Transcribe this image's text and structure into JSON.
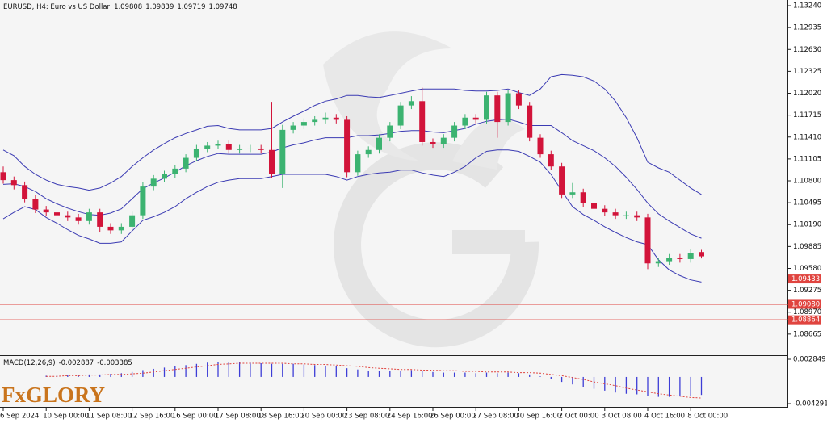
{
  "chart_data": [
    {
      "type": "candlestick",
      "title": "EURUSD, H4:  Euro vs US Dollar",
      "categories": [
        "6 Sep 2024",
        null,
        null,
        null,
        "10 Sep 00:00",
        null,
        null,
        null,
        "11 Sep 08:00",
        null,
        null,
        null,
        "12 Sep 16:00",
        null,
        null,
        null,
        "16 Sep 00:00",
        null,
        null,
        null,
        "17 Sep 08:00",
        null,
        null,
        null,
        "18 Sep 16:00",
        null,
        null,
        null,
        "20 Sep 00:00",
        null,
        null,
        null,
        "23 Sep 08:00",
        null,
        null,
        null,
        "24 Sep 16:00",
        null,
        null,
        null,
        "26 Sep 00:00",
        null,
        null,
        null,
        "27 Sep 08:00",
        null,
        null,
        null,
        "30 Sep 16:00",
        null,
        null,
        null,
        "2 Oct 00:00",
        null,
        null,
        null,
        "3 Oct 08:00",
        null,
        null,
        null,
        "4 Oct 16:00",
        null,
        null,
        null,
        "8 Oct 00:00",
        null
      ],
      "open": [
        1.1092,
        1.1081,
        1.1074,
        1.1055,
        1.104,
        1.1036,
        1.1032,
        1.1029,
        1.1024,
        1.1036,
        1.1016,
        1.1011,
        1.1016,
        1.1032,
        1.1072,
        1.1083,
        1.1089,
        1.1097,
        1.1112,
        1.1125,
        1.1129,
        1.1131,
        1.1123,
        1.1125,
        1.1125,
        1.1123,
        1.1089,
        1.1151,
        1.1157,
        1.1162,
        1.1165,
        1.1168,
        1.1165,
        1.1092,
        1.1117,
        1.1123,
        1.114,
        1.1157,
        1.1185,
        1.1191,
        1.1134,
        1.1131,
        1.114,
        1.1157,
        1.1168,
        1.1165,
        1.1199,
        1.1162,
        1.1202,
        1.1185,
        1.114,
        1.1117,
        1.11,
        1.1061,
        1.1064,
        1.1049,
        1.1041,
        1.1036,
        1.1032,
        1.1032,
        1.1029,
        1.0965,
        1.0968,
        1.0973,
        1.0971,
        1.09808
      ],
      "high": [
        1.11,
        1.1086,
        1.1079,
        1.106,
        1.1045,
        1.1041,
        1.1037,
        1.1034,
        1.1041,
        1.1041,
        1.1021,
        1.1021,
        1.1037,
        1.1078,
        1.1088,
        1.1094,
        1.1102,
        1.1117,
        1.113,
        1.1134,
        1.1136,
        1.1136,
        1.113,
        1.113,
        1.113,
        1.119,
        1.1158,
        1.1162,
        1.1167,
        1.117,
        1.1175,
        1.1173,
        1.117,
        1.1122,
        1.1128,
        1.1145,
        1.1162,
        1.119,
        1.1198,
        1.121,
        1.1139,
        1.1145,
        1.1162,
        1.1173,
        1.1173,
        1.1204,
        1.1204,
        1.1207,
        1.1207,
        1.119,
        1.1145,
        1.1122,
        1.1105,
        1.1077,
        1.1069,
        1.1054,
        1.1046,
        1.1041,
        1.1037,
        1.1037,
        1.1034,
        1.0973,
        1.0978,
        1.0978,
        1.0985,
        1.09839
      ],
      "low": [
        1.1076,
        1.1068,
        1.105,
        1.1035,
        1.1031,
        1.1027,
        1.1024,
        1.1019,
        1.1019,
        1.1008,
        1.1006,
        1.1006,
        1.1011,
        1.1027,
        1.1067,
        1.1078,
        1.1084,
        1.1092,
        1.1107,
        1.112,
        1.1124,
        1.1118,
        1.1118,
        1.112,
        1.1118,
        1.1084,
        1.107,
        1.1146,
        1.1152,
        1.1157,
        1.116,
        1.116,
        1.1085,
        1.1087,
        1.1112,
        1.1118,
        1.1135,
        1.1152,
        1.118,
        1.1129,
        1.1126,
        1.1126,
        1.1135,
        1.1152,
        1.116,
        1.116,
        1.114,
        1.1157,
        1.118,
        1.1135,
        1.1112,
        1.1095,
        1.1056,
        1.1056,
        1.1044,
        1.1036,
        1.1031,
        1.1027,
        1.1027,
        1.1024,
        1.0957,
        1.096,
        1.0963,
        1.0966,
        1.0966,
        1.09719
      ],
      "close": [
        1.1081,
        1.1074,
        1.1055,
        1.104,
        1.1036,
        1.1032,
        1.1029,
        1.1024,
        1.1036,
        1.1016,
        1.1011,
        1.1016,
        1.1032,
        1.1072,
        1.1083,
        1.1089,
        1.1097,
        1.1112,
        1.1125,
        1.1129,
        1.1131,
        1.1123,
        1.1125,
        1.1125,
        1.1123,
        1.1089,
        1.1151,
        1.1157,
        1.1162,
        1.1165,
        1.1168,
        1.1165,
        1.1092,
        1.1117,
        1.1123,
        1.114,
        1.1157,
        1.1185,
        1.1191,
        1.1134,
        1.1131,
        1.114,
        1.1157,
        1.1168,
        1.1165,
        1.1199,
        1.1162,
        1.1202,
        1.1185,
        1.114,
        1.1117,
        1.11,
        1.1061,
        1.1064,
        1.1049,
        1.1041,
        1.1036,
        1.1032,
        1.1032,
        1.1029,
        1.0965,
        1.0968,
        1.0973,
        1.0971,
        1.0979,
        1.09748
      ],
      "up_color": "#3cb371",
      "down_color": "#d2143a",
      "overlays": [
        {
          "color": "#3b3bb3",
          "values": [
            1.1123,
            1.1115,
            1.11,
            1.1089,
            1.1081,
            1.1075,
            1.1072,
            1.107,
            1.1067,
            1.107,
            1.1077,
            1.1086,
            1.11,
            1.1112,
            1.1123,
            1.1132,
            1.114,
            1.1146,
            1.1151,
            1.1156,
            1.1157,
            1.1153,
            1.1151,
            1.1151,
            1.1151,
            1.1153,
            1.1162,
            1.117,
            1.1177,
            1.1185,
            1.1191,
            1.1194,
            1.1199,
            1.1199,
            1.1197,
            1.1196,
            1.1199,
            1.1202,
            1.1205,
            1.1208,
            1.1208,
            1.1208,
            1.1208,
            1.1206,
            1.1205,
            1.1205,
            1.1206,
            1.1208,
            1.1203,
            1.1199,
            1.1208,
            1.1225,
            1.1228,
            1.1227,
            1.1225,
            1.1219,
            1.1208,
            1.1191,
            1.1168,
            1.114,
            1.1106,
            1.1098,
            1.1092,
            1.1081,
            1.107,
            1.1061
          ]
        },
        {
          "color": "#3b3bb3",
          "values": [
            1.1075,
            1.1076,
            1.1072,
            1.1065,
            1.1055,
            1.1048,
            1.1042,
            1.1037,
            1.1033,
            1.1032,
            1.1035,
            1.1041,
            1.1055,
            1.1069,
            1.1077,
            1.1084,
            1.1092,
            1.1101,
            1.1108,
            1.1114,
            1.1118,
            1.1117,
            1.1117,
            1.1117,
            1.1117,
            1.112,
            1.1126,
            1.113,
            1.1133,
            1.1137,
            1.114,
            1.114,
            1.114,
            1.1143,
            1.1143,
            1.1144,
            1.1146,
            1.1149,
            1.115,
            1.115,
            1.1148,
            1.1147,
            1.115,
            1.1153,
            1.1159,
            1.1163,
            1.1165,
            1.1166,
            1.1162,
            1.1157,
            1.1157,
            1.1157,
            1.1147,
            1.1136,
            1.1129,
            1.1122,
            1.1112,
            1.11,
            1.1085,
            1.1068,
            1.1049,
            1.1034,
            1.1024,
            1.1015,
            1.1006,
            1.1
          ]
        },
        {
          "color": "#3b3bb3",
          "values": [
            1.1027,
            1.1036,
            1.1044,
            1.104,
            1.1029,
            1.1021,
            1.1012,
            1.1004,
            1.0999,
            1.0993,
            1.0993,
            1.0995,
            1.101,
            1.1025,
            1.103,
            1.1036,
            1.1044,
            1.1055,
            1.1064,
            1.1072,
            1.1078,
            1.1081,
            1.1083,
            1.1083,
            1.1083,
            1.1086,
            1.1089,
            1.1089,
            1.1089,
            1.1089,
            1.1089,
            1.1086,
            1.1081,
            1.1086,
            1.1089,
            1.1091,
            1.1092,
            1.1095,
            1.1095,
            1.1091,
            1.1088,
            1.1086,
            1.1092,
            1.11,
            1.1112,
            1.1121,
            1.1123,
            1.1123,
            1.1121,
            1.1114,
            1.1106,
            1.1089,
            1.1066,
            1.1044,
            1.1033,
            1.1025,
            1.1016,
            1.1008,
            1.1001,
            1.0995,
            1.0991,
            1.097,
            1.0956,
            1.0948,
            1.0942,
            1.0939
          ]
        }
      ],
      "levels": [
        1.09433,
        {
          "value": 1.0908,
          "label": "1.09080"
        },
        1.08864
      ],
      "level_color": "#e0443f",
      "ylim": [
        1.08371,
        1.13319
      ],
      "yticks": [
        {
          "value": 1.1324,
          "label": "1.13240"
        },
        1.12935,
        {
          "value": 1.1263,
          "label": "1.12630"
        },
        1.12325,
        {
          "value": 1.1202,
          "label": "1.12020"
        },
        1.11715,
        {
          "value": 1.1141,
          "label": "1.11410"
        },
        1.11105,
        {
          "value": 1.108,
          "label": "1.10800"
        },
        1.10495,
        {
          "value": 1.1019,
          "label": "1.10190"
        },
        1.09885,
        {
          "value": 1.0958,
          "label": "1.09580"
        },
        1.09275,
        {
          "value": 1.0897,
          "label": "1.08970"
        },
        1.08665
      ]
    },
    {
      "type": "macd",
      "title": "MACD(12,26,9)",
      "values": [
        null,
        null,
        null,
        null,
        0.0002,
        0.0002,
        0.0003,
        0.0003,
        0.0004,
        0.0004,
        0.0005,
        0.0006,
        0.0008,
        0.0011,
        0.0013,
        0.0015,
        0.0017,
        0.0019,
        0.0021,
        0.0023,
        0.0024,
        0.0024,
        0.0024,
        0.0023,
        0.0022,
        0.0021,
        0.0021,
        0.0021,
        0.002,
        0.0019,
        0.0018,
        0.0017,
        0.0014,
        0.0012,
        0.001,
        0.0009,
        0.0009,
        0.001,
        0.0011,
        0.001,
        0.0008,
        0.0007,
        0.0007,
        0.0007,
        0.0006,
        0.0007,
        0.0006,
        0.0007,
        0.0006,
        0.0004,
        0.0001,
        -0.0003,
        -0.0008,
        -0.0012,
        -0.0016,
        -0.0019,
        -0.0022,
        -0.0025,
        -0.0027,
        -0.0028,
        -0.0031,
        -0.0032,
        -0.0032,
        -0.0031,
        -0.003,
        -0.002887
      ],
      "color": "#3d3dd6",
      "signal": [
        null,
        null,
        null,
        null,
        0.0001,
        0.0001,
        0.0002,
        0.0002,
        0.0003,
        0.0003,
        0.0004,
        0.0004,
        0.0005,
        0.0006,
        0.0008,
        0.001,
        0.0012,
        0.0014,
        0.0016,
        0.0018,
        0.002,
        0.0021,
        0.0022,
        0.0022,
        0.0022,
        0.0022,
        0.0022,
        0.0021,
        0.0021,
        0.002,
        0.002,
        0.0019,
        0.0018,
        0.0017,
        0.0015,
        0.0014,
        0.0013,
        0.0012,
        0.0012,
        0.0011,
        0.0011,
        0.001,
        0.001,
        0.0009,
        0.0009,
        0.0008,
        0.0008,
        0.0008,
        0.0007,
        0.0007,
        0.0006,
        0.0004,
        0.0002,
        -0.0001,
        -0.0004,
        -0.0008,
        -0.0011,
        -0.0014,
        -0.0018,
        -0.0021,
        -0.0024,
        -0.0027,
        -0.0029,
        -0.0031,
        -0.0033,
        -0.003385
      ],
      "signal_color": "#e0443f",
      "ylim": [
        -0.00494,
        0.003368
      ],
      "yticks": [
        0.002849,
        -0.004291
      ]
    }
  ],
  "logo": "FxGLORY"
}
